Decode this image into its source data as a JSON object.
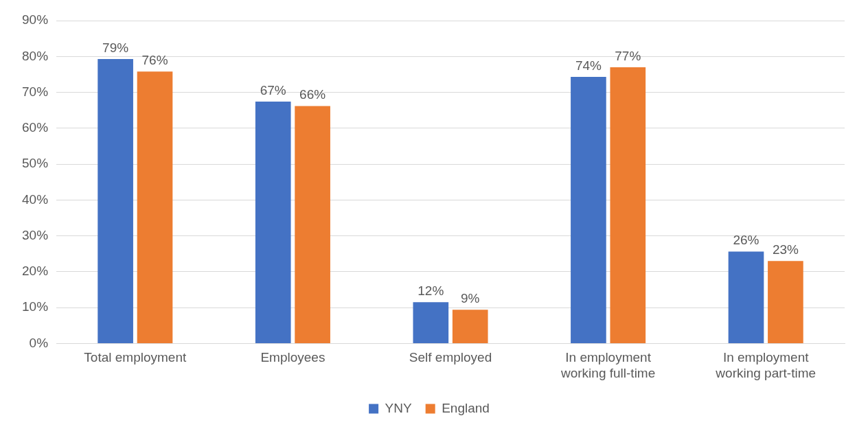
{
  "chart_data": {
    "type": "bar",
    "categories": [
      "Total employment",
      "Employees",
      "Self employed",
      "In employment working full-time",
      "In employment working part-time"
    ],
    "series": [
      {
        "name": "YNY",
        "color": "#4472c4",
        "values": [
          79.3,
          67.4,
          11.5,
          74.3,
          25.6
        ],
        "value_labels": [
          "79%",
          "67%",
          "12%",
          "74%",
          "26%"
        ]
      },
      {
        "name": "England",
        "color": "#ed7d31",
        "values": [
          75.8,
          66.2,
          9.4,
          77.0,
          23.0
        ],
        "value_labels": [
          "76%",
          "66%",
          "9%",
          "77%",
          "23%"
        ]
      }
    ],
    "ylim": [
      0,
      90
    ],
    "yticks": [
      {
        "value": 0,
        "label": "0%"
      },
      {
        "value": 10,
        "label": "10%"
      },
      {
        "value": 20,
        "label": "20%"
      },
      {
        "value": 30,
        "label": "30%"
      },
      {
        "value": 40,
        "label": "40%"
      },
      {
        "value": 50,
        "label": "50%"
      },
      {
        "value": 60,
        "label": "60%"
      },
      {
        "value": 70,
        "label": "70%"
      },
      {
        "value": 80,
        "label": "80%"
      },
      {
        "value": 90,
        "label": "90%"
      }
    ],
    "grid": "y",
    "legend": "bottom"
  }
}
